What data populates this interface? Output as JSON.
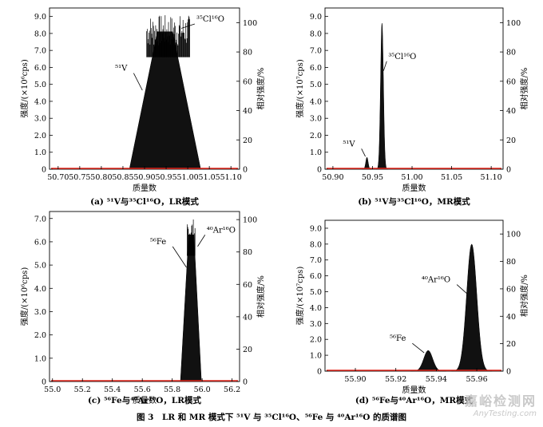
{
  "figure_caption": "图 3　LR 和 MR 模式下 ⁵¹V 与 ³⁵Cl¹⁶O、⁵⁶Fe 与 ⁴⁰Ar¹⁶O 的质谱图",
  "watermark": {
    "text_cn": "嘉峪检测网",
    "text_en": "AnyTesting.com"
  },
  "colors": {
    "baseline": "#e2261b",
    "peak": "#111111",
    "axis": "#000000"
  },
  "chart_data": [
    {
      "id": "a",
      "type": "area",
      "caption": "(a) ⁵¹V与³⁵Cl¹⁶O，LR模式",
      "xlabel": "质量数",
      "ylabel_left": "强度/(×10⁶cps)",
      "ylabel_right": "相对强度/%",
      "xlim": [
        50.68,
        51.12
      ],
      "ylim_left": [
        0,
        9.5
      ],
      "ylim_right": [
        0,
        110
      ],
      "xticks": [
        50.7,
        50.75,
        50.8,
        50.85,
        50.9,
        50.95,
        51.0,
        51.05,
        51.1
      ],
      "xtick_labels": [
        "50.70",
        "50.75",
        "50.80",
        "50.85",
        "50.90",
        "50.95",
        "51.00",
        "51.05",
        "51.10"
      ],
      "yticks_left": [
        0,
        1.0,
        2.0,
        3.0,
        4.0,
        5.0,
        6.0,
        7.0,
        8.0,
        9.0
      ],
      "ytick_labels_left": [
        "0",
        "1.0",
        "2.0",
        "3.0",
        "4.0",
        "5.0",
        "6.0",
        "7.0",
        "8.0",
        "9.0"
      ],
      "yticks_right": [
        0,
        20,
        40,
        60,
        80,
        100
      ],
      "ytick_labels_right": [
        "0",
        "20",
        "40",
        "60",
        "80",
        "100"
      ],
      "series": [
        {
          "kind": "trapezoid",
          "x": [
            50.865,
            50.93,
            50.965,
            51.03
          ],
          "y": [
            0,
            8.1,
            8.1,
            0
          ]
        },
        {
          "kind": "noise",
          "x0": 50.905,
          "x1": 51.005,
          "ymin": 7.2,
          "ymax": 9.1
        }
      ],
      "annotations": [
        {
          "label": "⁵¹V",
          "x": 50.895,
          "y": 4.65,
          "label_x": 50.86,
          "label_y": 5.8
        },
        {
          "label": "³⁵Cl¹⁶O",
          "x": 50.985,
          "y": 8.3,
          "label_x": 51.02,
          "label_y": 8.7
        }
      ]
    },
    {
      "id": "b",
      "type": "area",
      "caption": "(b) ⁵¹V与³⁵Cl¹⁶O，MR模式",
      "xlabel": "质量数",
      "ylabel_left": "强度/(×10⁷cps)",
      "ylabel_right": "相对强度/%",
      "xlim": [
        50.89,
        51.115
      ],
      "ylim_left": [
        0,
        9.5
      ],
      "ylim_right": [
        0,
        110
      ],
      "xticks": [
        50.9,
        50.95,
        51.0,
        51.05,
        51.1
      ],
      "xtick_labels": [
        "50.90",
        "50.95",
        "51.00",
        "51.05",
        "51.10"
      ],
      "yticks_left": [
        0,
        1.0,
        2.0,
        3.0,
        4.0,
        5.0,
        6.0,
        7.0,
        8.0,
        9.0
      ],
      "ytick_labels_left": [
        "0",
        "1.0",
        "2.0",
        "3.0",
        "4.0",
        "5.0",
        "6.0",
        "7.0",
        "8.0",
        "9.0"
      ],
      "yticks_right": [
        0,
        20,
        40,
        60,
        80,
        100
      ],
      "ytick_labels_right": [
        "0",
        "20",
        "40",
        "60",
        "80",
        "100"
      ],
      "series": [
        {
          "kind": "gauss",
          "center": 50.943,
          "height": 0.7,
          "sigma": 0.0015
        },
        {
          "kind": "gauss",
          "center": 50.962,
          "height": 8.6,
          "sigma": 0.0018
        }
      ],
      "annotations": [
        {
          "label": "⁵¹V",
          "x": 50.941,
          "y": 0.75,
          "label_x": 50.928,
          "label_y": 1.35
        },
        {
          "label": "³⁵Cl¹⁶O",
          "x": 50.964,
          "y": 5.8,
          "label_x": 50.97,
          "label_y": 6.5
        }
      ]
    },
    {
      "id": "c",
      "type": "area",
      "caption": "(c) ⁵⁶Fe与⁴⁰Ar¹⁶O，LR模式",
      "xlabel": "质量数",
      "ylabel_left": "强度/(×10⁶cps)",
      "ylabel_right": "相对强度/%",
      "xlim": [
        54.98,
        56.25
      ],
      "ylim_left": [
        0,
        7.3
      ],
      "ylim_right": [
        0,
        105
      ],
      "xticks": [
        55.0,
        55.2,
        55.4,
        55.6,
        55.8,
        56.0,
        56.2
      ],
      "xtick_labels": [
        "55.0",
        "55.2",
        "55.4",
        "55.6",
        "55.8",
        "56.0",
        "56.2"
      ],
      "yticks_left": [
        0,
        1.0,
        2.0,
        3.0,
        4.0,
        5.0,
        6.0,
        7.0
      ],
      "ytick_labels_left": [
        "0",
        "1.0",
        "2.0",
        "3.0",
        "4.0",
        "5.0",
        "6.0",
        "7.0"
      ],
      "yticks_right": [
        0,
        20,
        40,
        60,
        80,
        100
      ],
      "ytick_labels_right": [
        "0",
        "20",
        "40",
        "60",
        "80",
        "100"
      ],
      "series": [
        {
          "kind": "trapezoid",
          "x": [
            55.855,
            55.91,
            55.945,
            55.995
          ],
          "y": [
            0,
            6.3,
            6.3,
            0
          ]
        },
        {
          "kind": "noise",
          "x0": 55.9,
          "x1": 55.955,
          "ymin": 6.0,
          "ymax": 7.0
        }
      ],
      "annotations": [
        {
          "label": "⁵⁶Fe",
          "x": 55.895,
          "y": 4.9,
          "label_x": 55.76,
          "label_y": 5.9
        },
        {
          "label": "⁴⁰Ar¹⁶O",
          "x": 55.97,
          "y": 5.8,
          "label_x": 56.03,
          "label_y": 6.4
        }
      ]
    },
    {
      "id": "d",
      "type": "area",
      "caption": "(d) ⁵⁶Fe与⁴⁰Ar¹⁶O，MR模式",
      "xlabel": "质量数",
      "ylabel_left": "强度/(×10⁷cps)",
      "ylabel_right": "相对强度/%",
      "xlim": [
        55.885,
        55.973
      ],
      "ylim_left": [
        0,
        9.5
      ],
      "ylim_right": [
        0,
        110
      ],
      "xticks": [
        55.9,
        55.92,
        55.94,
        55.96
      ],
      "xtick_labels": [
        "55.90",
        "55.92",
        "55.94",
        "55.96"
      ],
      "yticks_left": [
        0,
        1.0,
        2.0,
        3.0,
        4.0,
        5.0,
        6.0,
        7.0,
        8.0,
        9.0
      ],
      "ytick_labels_left": [
        "0",
        "1.0",
        "2.0",
        "3.0",
        "4.0",
        "5.0",
        "6.0",
        "7.0",
        "8.0",
        "9.0"
      ],
      "yticks_right": [
        0,
        20,
        40,
        60,
        80,
        100
      ],
      "ytick_labels_right": [
        "0",
        "20",
        "40",
        "60",
        "80",
        "100"
      ],
      "series": [
        {
          "kind": "gauss",
          "center": 55.936,
          "height": 1.3,
          "sigma": 0.0022
        },
        {
          "kind": "gauss",
          "center": 55.9575,
          "height": 8.0,
          "sigma": 0.0025
        }
      ],
      "annotations": [
        {
          "label": "⁵⁶Fe",
          "x": 55.934,
          "y": 1.15,
          "label_x": 55.925,
          "label_y": 1.9
        },
        {
          "label": "⁴⁰Ar¹⁶O",
          "x": 55.955,
          "y": 4.9,
          "label_x": 55.947,
          "label_y": 5.6
        }
      ]
    }
  ]
}
